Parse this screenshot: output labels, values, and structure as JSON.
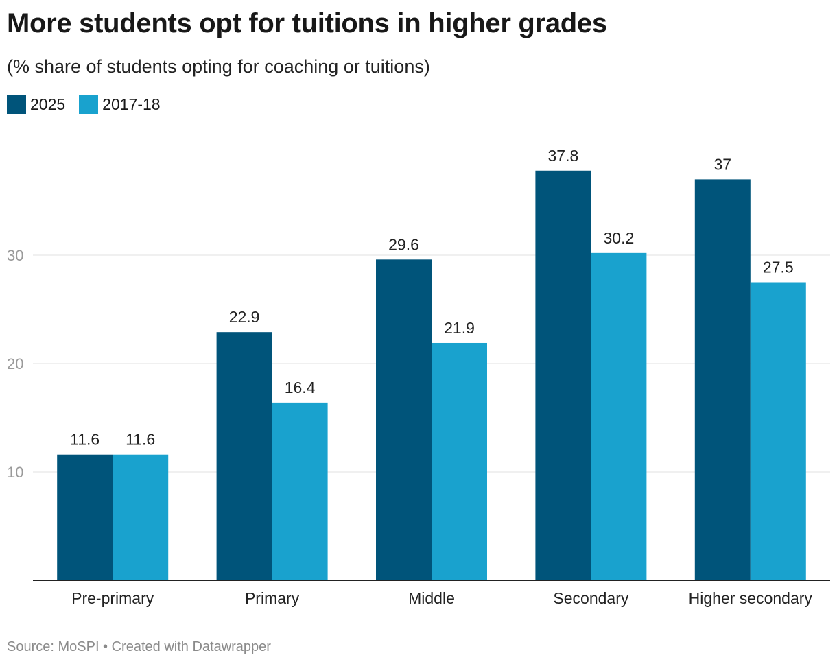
{
  "header": {
    "title": "More students opt for tuitions in higher grades",
    "subtitle": "(% share of students opting for coaching or tuitions)"
  },
  "footer": {
    "source": "Source: MoSPI • Created with Datawrapper"
  },
  "chart_data": {
    "type": "bar",
    "title": "More students opt for tuitions in higher grades",
    "subtitle": "(% share of students opting for coaching or tuitions)",
    "categories": [
      "Pre-primary",
      "Primary",
      "Middle",
      "Secondary",
      "Higher secondary"
    ],
    "series": [
      {
        "name": "2025",
        "color": "#00547a",
        "values": [
          11.6,
          22.9,
          29.6,
          37.8,
          37
        ]
      },
      {
        "name": "2017-18",
        "color": "#19a2ce",
        "values": [
          11.6,
          16.4,
          21.9,
          30.2,
          27.5
        ]
      }
    ],
    "y_ticks": [
      10,
      20,
      30
    ],
    "ylim": [
      0,
      42
    ],
    "grid": true,
    "legend_position": "top-left",
    "data_labels": true
  }
}
